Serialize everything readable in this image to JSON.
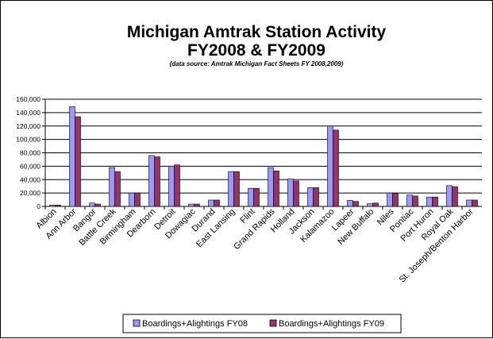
{
  "chart_data": {
    "type": "bar",
    "title": "Michigan Amtrak Station Activity",
    "title_line2": "FY2008 & FY2009",
    "subtitle": "(data source: Amtrak Michigan Fact Sheets FY 2008,2009)",
    "xlabel": "",
    "ylabel": "",
    "ylim": [
      0,
      160000
    ],
    "yticks": [
      0,
      20000,
      40000,
      60000,
      80000,
      100000,
      120000,
      140000,
      160000
    ],
    "ytick_labels": [
      "0",
      "20,000",
      "40,000",
      "60,000",
      "80,000",
      "100,000",
      "120,000",
      "140,000",
      "160,000"
    ],
    "grid": true,
    "legend_position": "bottom",
    "categories": [
      "Albion",
      "Ann Arbor",
      "Bangor",
      "Battle Creek",
      "Birmingham",
      "Dearborn",
      "Detroit",
      "Dowagiac",
      "Durand",
      "East Lansing",
      "Flint",
      "Grand Rapids",
      "Holland",
      "Jackson",
      "Kalamazoo",
      "Lapeer",
      "New Buffalo",
      "Niles",
      "Pontiac",
      "Port Huron",
      "Royal Oak",
      "St. Joseph/Benton Harbor"
    ],
    "series": [
      {
        "name": "Boardings+Alightings FY08",
        "color": "#9999ff",
        "values": [
          2000,
          149000,
          5000,
          58000,
          20000,
          76000,
          60000,
          3500,
          9500,
          52000,
          27000,
          58000,
          41000,
          28000,
          120000,
          9000,
          4000,
          20000,
          17000,
          14000,
          31000,
          9500
        ]
      },
      {
        "name": "Boardings+Alightings FY09",
        "color": "#993366",
        "values": [
          2000,
          134000,
          3500,
          52000,
          20000,
          74000,
          62000,
          3500,
          9500,
          52000,
          27000,
          53000,
          38000,
          28000,
          114000,
          7500,
          5000,
          19500,
          15500,
          14000,
          29500,
          9500
        ]
      }
    ]
  }
}
